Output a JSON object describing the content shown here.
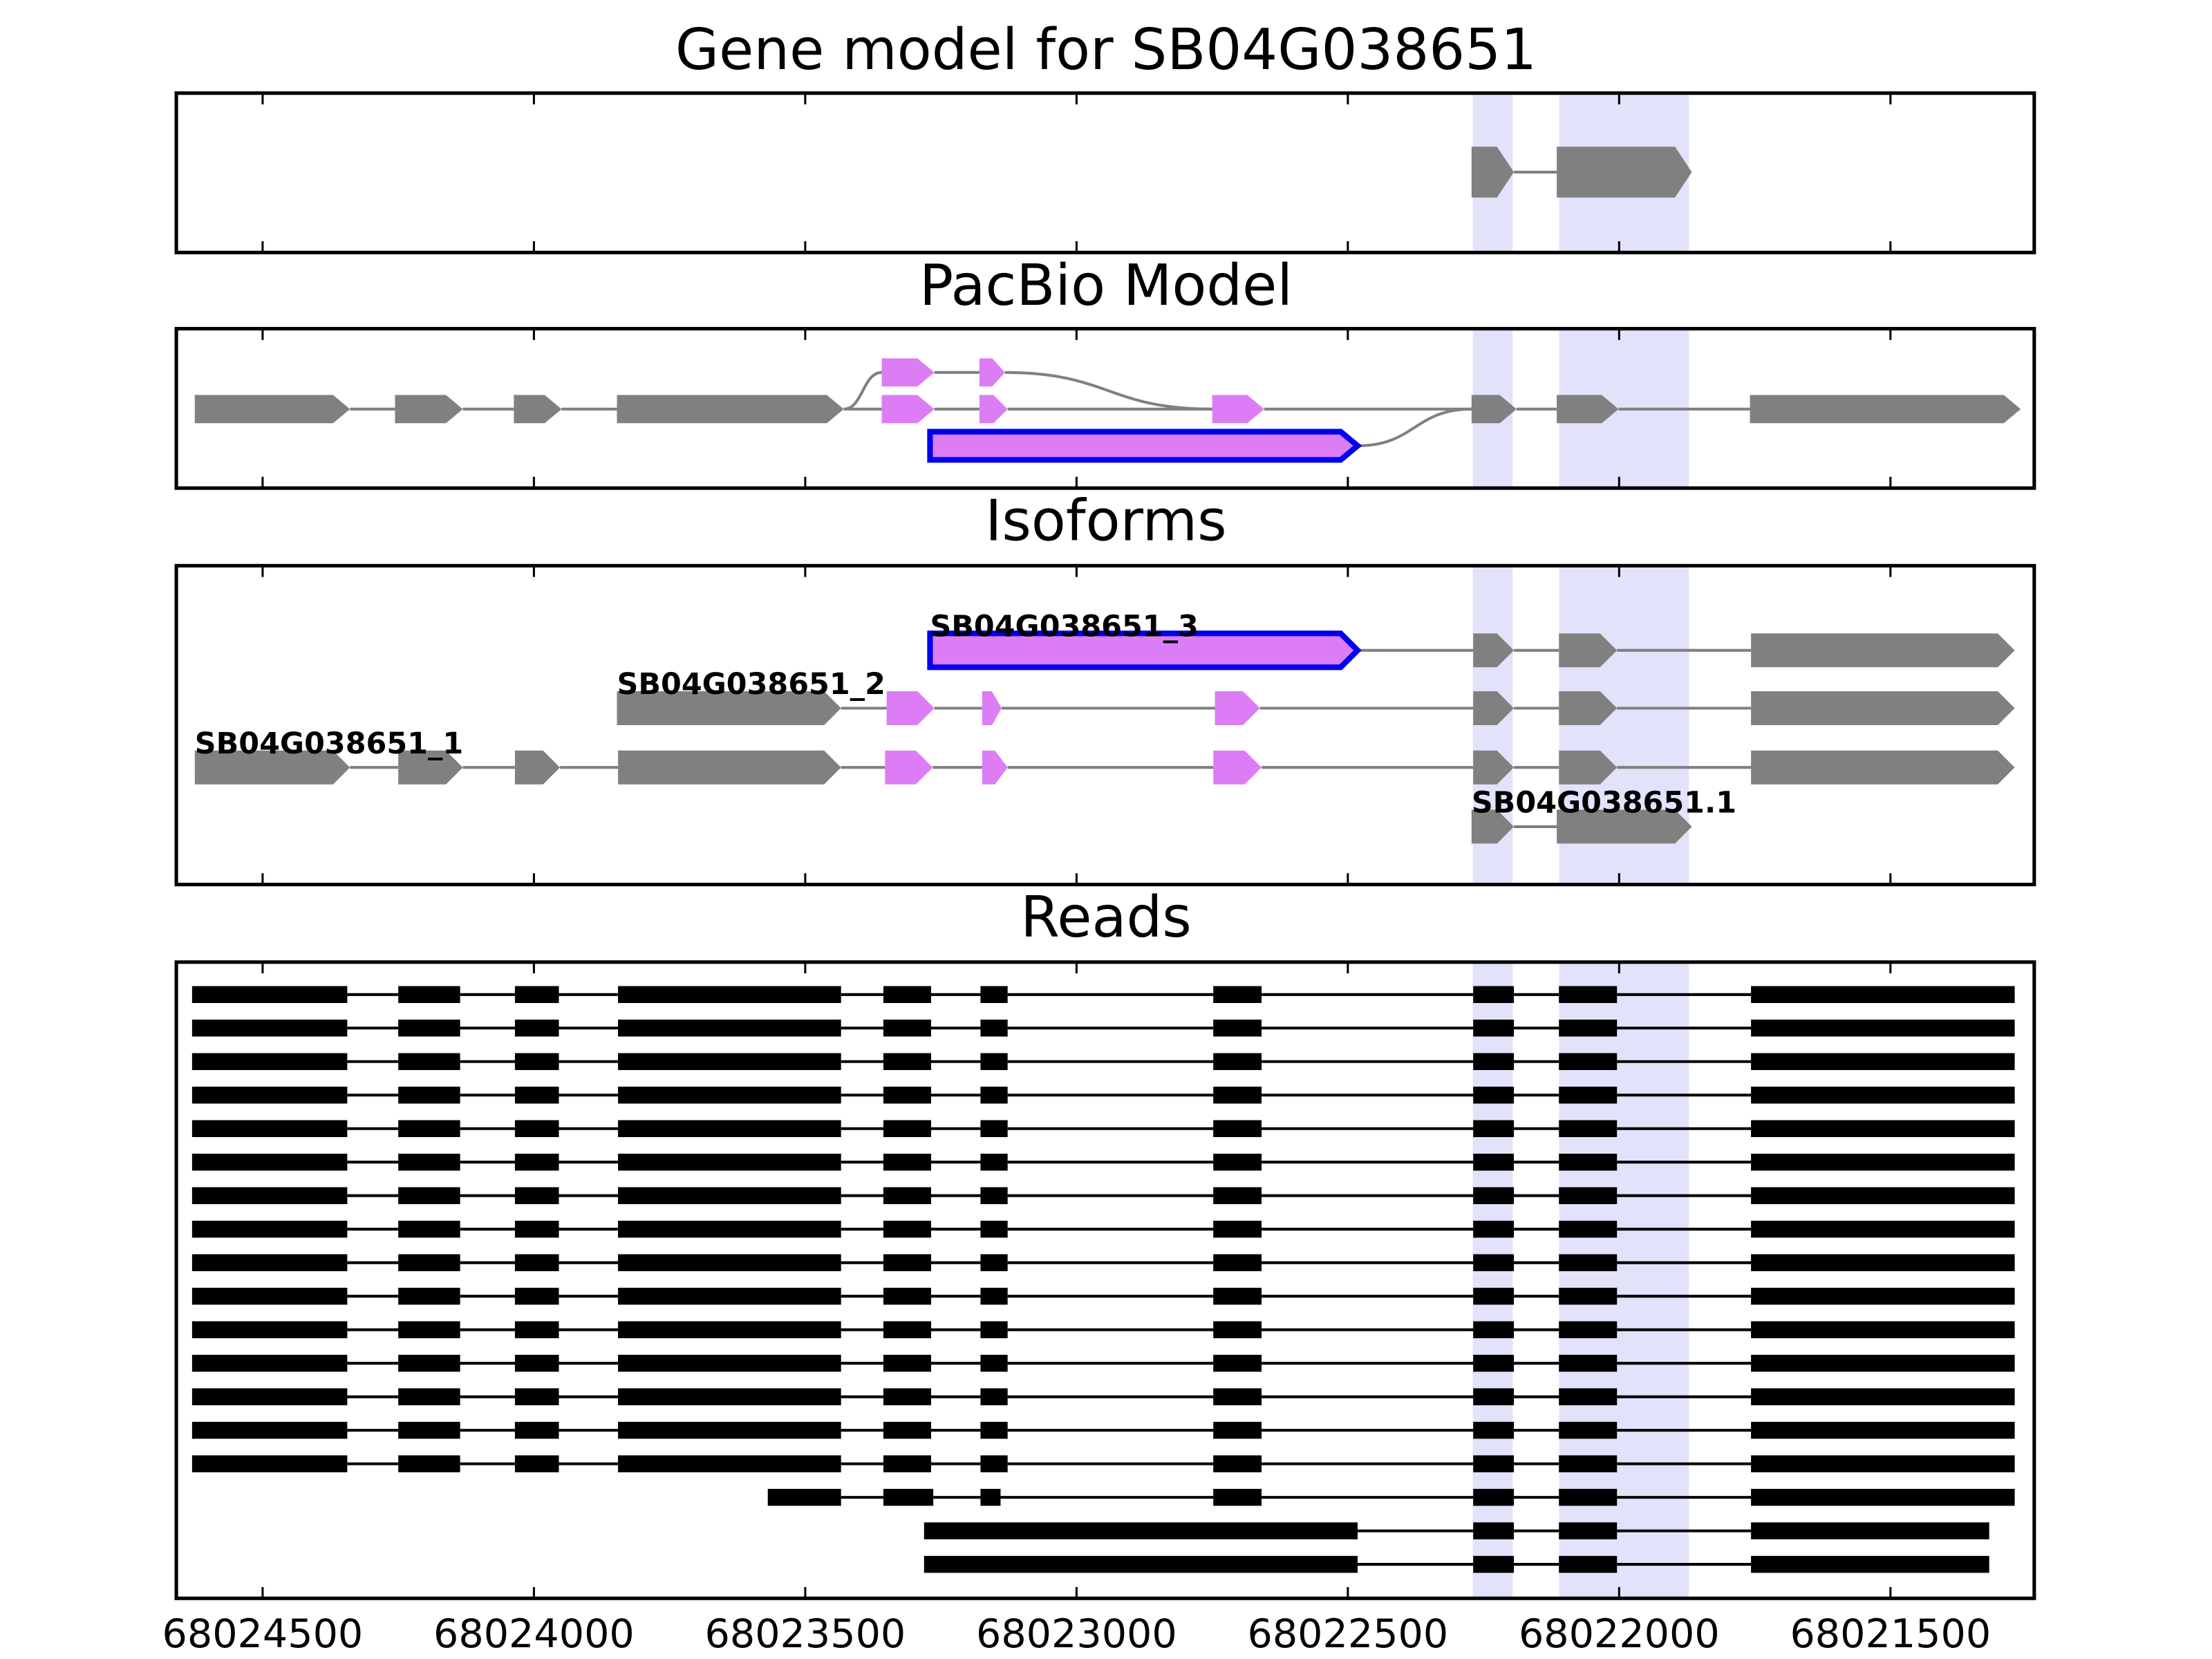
{
  "chart_data": {
    "type": "gene-model",
    "xlim": [
      68024659,
      68021235
    ],
    "xticks": [
      68024500,
      68024000,
      68023500,
      68023000,
      68022500,
      68022000,
      68021500
    ],
    "highlight_color": "#e2e2fa",
    "highlights": [
      [
        68022267,
        68022199
      ],
      [
        68022108,
        68021874
      ]
    ],
    "gene_model": {
      "title": "Gene model for SB04G038651",
      "exons": [
        [
          68022272,
          68022194
        ],
        [
          68022115,
          68021866
        ]
      ],
      "color": "#808080"
    },
    "pacbio": {
      "title": "PacBio Model",
      "nodes": [
        {
          "start": 68024625,
          "end": 68024339,
          "row": 1,
          "color": "#808080"
        },
        {
          "start": 68024256,
          "end": 68024131,
          "row": 1,
          "color": "#808080"
        },
        {
          "start": 68024037,
          "end": 68023949,
          "row": 1,
          "color": "#808080"
        },
        {
          "start": 68023847,
          "end": 68023429,
          "row": 1,
          "color": "#808080"
        },
        {
          "start": 68023359,
          "end": 68023262,
          "row": 1,
          "color": "#dd7df5"
        },
        {
          "start": 68023179,
          "end": 68023127,
          "row": 1,
          "color": "#dd7df5"
        },
        {
          "start": 68023359,
          "end": 68023262,
          "row": 0,
          "color": "#dd7df5"
        },
        {
          "start": 68023179,
          "end": 68023132,
          "row": 0,
          "color": "#dd7df5"
        },
        {
          "start": 68022750,
          "end": 68022654,
          "row": 1,
          "color": "#dd7df5"
        },
        {
          "start": 68023270,
          "end": 68022482,
          "row": 2,
          "color": "#dd7df5",
          "edgecolor": "#0000ee"
        },
        {
          "start": 68022272,
          "end": 68022189,
          "row": 1,
          "color": "#808080"
        },
        {
          "start": 68022115,
          "end": 68022001,
          "row": 1,
          "color": "#808080"
        },
        {
          "start": 68021759,
          "end": 68021260,
          "row": 1,
          "color": "#808080"
        }
      ],
      "edges": [
        [
          0,
          1
        ],
        [
          1,
          2
        ],
        [
          2,
          3
        ],
        [
          3,
          4
        ],
        [
          3,
          6
        ],
        [
          4,
          5
        ],
        [
          5,
          8
        ],
        [
          6,
          7
        ],
        [
          7,
          8
        ],
        [
          8,
          10
        ],
        [
          9,
          10
        ],
        [
          10,
          11
        ],
        [
          11,
          12
        ]
      ]
    },
    "isoforms": {
      "title": "Isoforms",
      "items": [
        {
          "name": "SB04G038651_3",
          "edgecolor": "#0000ee",
          "exons": [
            [
              68023270,
              68022482
            ],
            [
              68022269,
              68022194
            ],
            [
              68022111,
              68022004
            ],
            [
              68021757,
              68021271
            ]
          ],
          "colors": [
            "#dd7df5",
            "#808080",
            "#808080",
            "#808080"
          ]
        },
        {
          "name": "SB04G038651_2",
          "exons": [
            [
              68023847,
              68023434
            ],
            [
              68023350,
              68023262
            ],
            [
              68023174,
              68023138
            ],
            [
              68022745,
              68022662
            ],
            [
              68022269,
              68022194
            ],
            [
              68022111,
              68022004
            ],
            [
              68021757,
              68021271
            ]
          ],
          "colors": [
            "#808080",
            "#dd7df5",
            "#dd7df5",
            "#dd7df5",
            "#808080",
            "#808080",
            "#808080"
          ]
        },
        {
          "name": "SB04G038651_1",
          "exons": [
            [
              68024625,
              68024339
            ],
            [
              68024250,
              68024131
            ],
            [
              68024035,
              68023952
            ],
            [
              68023845,
              68023434
            ],
            [
              68023353,
              68023265
            ],
            [
              68023174,
              68023127
            ],
            [
              68022748,
              68022659
            ],
            [
              68022269,
              68022194
            ],
            [
              68022111,
              68022004
            ],
            [
              68021757,
              68021271
            ]
          ],
          "colors": [
            "#808080",
            "#808080",
            "#808080",
            "#808080",
            "#dd7df5",
            "#dd7df5",
            "#dd7df5",
            "#808080",
            "#808080",
            "#808080"
          ]
        },
        {
          "name": "SB04G038651.1",
          "exons": [
            [
              68022272,
              68022194
            ],
            [
              68022115,
              68021866
            ]
          ],
          "colors": [
            "#808080",
            "#808080"
          ]
        }
      ]
    },
    "reads": {
      "title": "Reads",
      "color": "#000000",
      "items": [
        [
          [
            68024630,
            68024344
          ],
          [
            68024250,
            68024136
          ],
          [
            68024035,
            68023954
          ],
          [
            68023845,
            68023434
          ],
          [
            68023356,
            68023268
          ],
          [
            68023177,
            68023127
          ],
          [
            68022748,
            68022659
          ],
          [
            68022269,
            68022194
          ],
          [
            68022111,
            68022004
          ],
          [
            68021757,
            68021271
          ]
        ],
        [
          [
            68024630,
            68024344
          ],
          [
            68024250,
            68024136
          ],
          [
            68024035,
            68023954
          ],
          [
            68023845,
            68023434
          ],
          [
            68023356,
            68023268
          ],
          [
            68023177,
            68023127
          ],
          [
            68022748,
            68022659
          ],
          [
            68022269,
            68022194
          ],
          [
            68022111,
            68022004
          ],
          [
            68021757,
            68021271
          ]
        ],
        [
          [
            68024630,
            68024344
          ],
          [
            68024250,
            68024136
          ],
          [
            68024035,
            68023954
          ],
          [
            68023845,
            68023434
          ],
          [
            68023356,
            68023268
          ],
          [
            68023177,
            68023127
          ],
          [
            68022748,
            68022659
          ],
          [
            68022269,
            68022194
          ],
          [
            68022111,
            68022004
          ],
          [
            68021757,
            68021271
          ]
        ],
        [
          [
            68024630,
            68024344
          ],
          [
            68024250,
            68024136
          ],
          [
            68024035,
            68023954
          ],
          [
            68023845,
            68023434
          ],
          [
            68023356,
            68023268
          ],
          [
            68023177,
            68023127
          ],
          [
            68022748,
            68022659
          ],
          [
            68022269,
            68022194
          ],
          [
            68022111,
            68022004
          ],
          [
            68021757,
            68021271
          ]
        ],
        [
          [
            68024630,
            68024344
          ],
          [
            68024250,
            68024136
          ],
          [
            68024035,
            68023954
          ],
          [
            68023845,
            68023434
          ],
          [
            68023356,
            68023268
          ],
          [
            68023177,
            68023127
          ],
          [
            68022748,
            68022659
          ],
          [
            68022269,
            68022194
          ],
          [
            68022111,
            68022004
          ],
          [
            68021757,
            68021271
          ]
        ],
        [
          [
            68024630,
            68024344
          ],
          [
            68024250,
            68024136
          ],
          [
            68024035,
            68023954
          ],
          [
            68023845,
            68023434
          ],
          [
            68023356,
            68023268
          ],
          [
            68023177,
            68023127
          ],
          [
            68022748,
            68022659
          ],
          [
            68022269,
            68022194
          ],
          [
            68022111,
            68022004
          ],
          [
            68021757,
            68021271
          ]
        ],
        [
          [
            68024630,
            68024344
          ],
          [
            68024250,
            68024136
          ],
          [
            68024035,
            68023954
          ],
          [
            68023845,
            68023434
          ],
          [
            68023356,
            68023268
          ],
          [
            68023177,
            68023127
          ],
          [
            68022748,
            68022659
          ],
          [
            68022269,
            68022194
          ],
          [
            68022111,
            68022004
          ],
          [
            68021757,
            68021271
          ]
        ],
        [
          [
            68024630,
            68024344
          ],
          [
            68024250,
            68024136
          ],
          [
            68024035,
            68023954
          ],
          [
            68023845,
            68023434
          ],
          [
            68023356,
            68023268
          ],
          [
            68023177,
            68023127
          ],
          [
            68022748,
            68022659
          ],
          [
            68022269,
            68022194
          ],
          [
            68022111,
            68022004
          ],
          [
            68021757,
            68021271
          ]
        ],
        [
          [
            68024630,
            68024344
          ],
          [
            68024250,
            68024136
          ],
          [
            68024035,
            68023954
          ],
          [
            68023845,
            68023434
          ],
          [
            68023356,
            68023268
          ],
          [
            68023177,
            68023127
          ],
          [
            68022748,
            68022659
          ],
          [
            68022269,
            68022194
          ],
          [
            68022111,
            68022004
          ],
          [
            68021757,
            68021271
          ]
        ],
        [
          [
            68024630,
            68024344
          ],
          [
            68024250,
            68024136
          ],
          [
            68024035,
            68023954
          ],
          [
            68023845,
            68023434
          ],
          [
            68023356,
            68023268
          ],
          [
            68023177,
            68023127
          ],
          [
            68022748,
            68022659
          ],
          [
            68022269,
            68022194
          ],
          [
            68022111,
            68022004
          ],
          [
            68021757,
            68021271
          ]
        ],
        [
          [
            68024630,
            68024344
          ],
          [
            68024250,
            68024136
          ],
          [
            68024035,
            68023954
          ],
          [
            68023845,
            68023434
          ],
          [
            68023356,
            68023268
          ],
          [
            68023177,
            68023127
          ],
          [
            68022748,
            68022659
          ],
          [
            68022269,
            68022194
          ],
          [
            68022111,
            68022004
          ],
          [
            68021757,
            68021271
          ]
        ],
        [
          [
            68024630,
            68024344
          ],
          [
            68024250,
            68024136
          ],
          [
            68024035,
            68023954
          ],
          [
            68023845,
            68023434
          ],
          [
            68023356,
            68023268
          ],
          [
            68023177,
            68023127
          ],
          [
            68022748,
            68022659
          ],
          [
            68022269,
            68022194
          ],
          [
            68022111,
            68022004
          ],
          [
            68021757,
            68021271
          ]
        ],
        [
          [
            68024630,
            68024344
          ],
          [
            68024250,
            68024136
          ],
          [
            68024035,
            68023954
          ],
          [
            68023845,
            68023434
          ],
          [
            68023356,
            68023268
          ],
          [
            68023177,
            68023127
          ],
          [
            68022748,
            68022659
          ],
          [
            68022269,
            68022194
          ],
          [
            68022111,
            68022004
          ],
          [
            68021757,
            68021271
          ]
        ],
        [
          [
            68024630,
            68024344
          ],
          [
            68024250,
            68024136
          ],
          [
            68024035,
            68023954
          ],
          [
            68023845,
            68023434
          ],
          [
            68023356,
            68023268
          ],
          [
            68023177,
            68023127
          ],
          [
            68022748,
            68022659
          ],
          [
            68022269,
            68022194
          ],
          [
            68022111,
            68022004
          ],
          [
            68021757,
            68021271
          ]
        ],
        [
          [
            68024630,
            68024344
          ],
          [
            68024250,
            68024136
          ],
          [
            68024035,
            68023954
          ],
          [
            68023845,
            68023434
          ],
          [
            68023356,
            68023268
          ],
          [
            68023177,
            68023127
          ],
          [
            68022748,
            68022659
          ],
          [
            68022269,
            68022194
          ],
          [
            68022111,
            68022004
          ],
          [
            68021757,
            68021271
          ]
        ],
        [
          [
            68023569,
            68023434
          ],
          [
            68023356,
            68023264
          ],
          [
            68023177,
            68023140
          ],
          [
            68022748,
            68022659
          ],
          [
            68022269,
            68022194
          ],
          [
            68022111,
            68022004
          ],
          [
            68021757,
            68021271
          ]
        ],
        [
          [
            68023281,
            68022482
          ],
          [
            68022269,
            68022194
          ],
          [
            68022111,
            68022004
          ],
          [
            68021757,
            68021318
          ]
        ],
        [
          [
            68023281,
            68022482
          ],
          [
            68022269,
            68022194
          ],
          [
            68022111,
            68022004
          ],
          [
            68021757,
            68021318
          ]
        ]
      ]
    }
  }
}
